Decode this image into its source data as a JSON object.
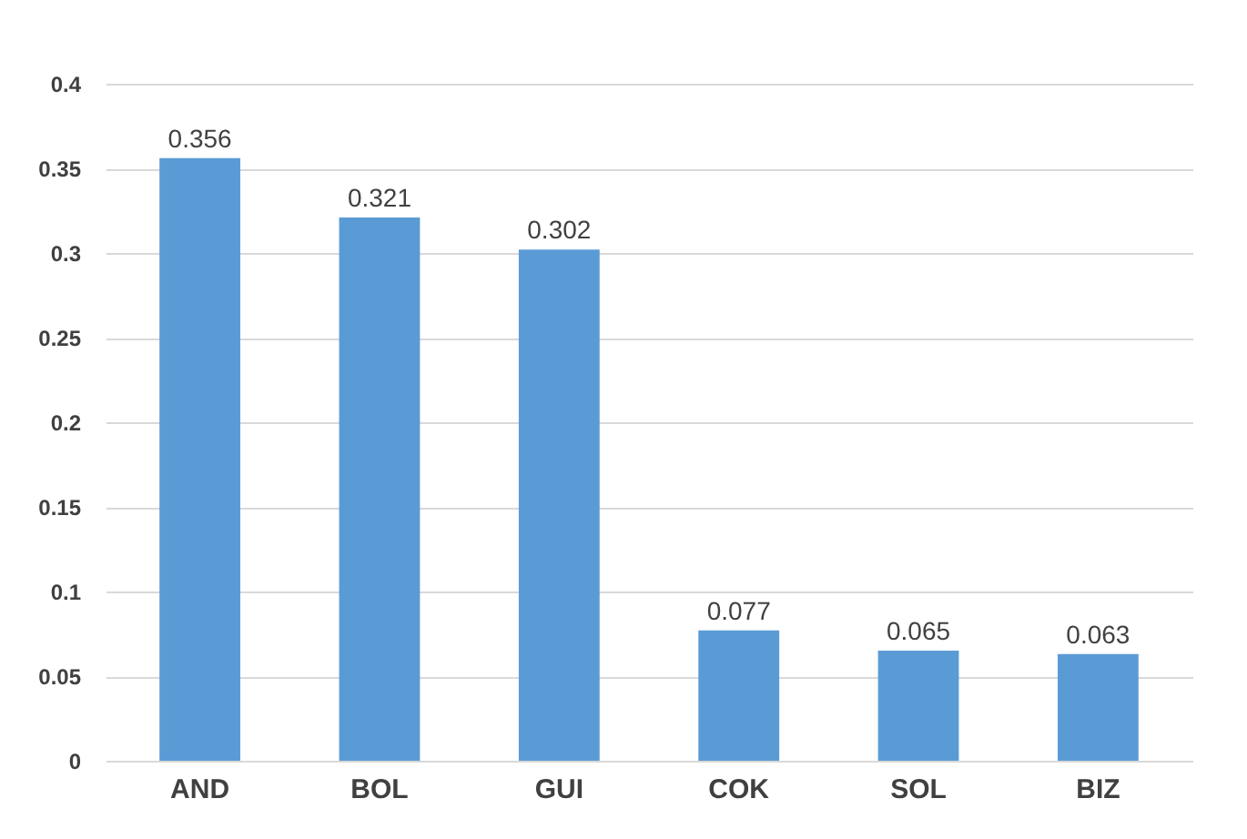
{
  "chart_data": {
    "type": "bar",
    "categories": [
      "AND",
      "BOL",
      "GUI",
      "COK",
      "SOL",
      "BIZ"
    ],
    "values": [
      0.356,
      0.321,
      0.302,
      0.077,
      0.065,
      0.063
    ],
    "color": "#5b9bd5",
    "ylim": [
      0,
      0.4
    ],
    "yticks": [
      0,
      0.05,
      0.1,
      0.15,
      0.2,
      0.25,
      0.3,
      0.35,
      0.4
    ],
    "grid": "y",
    "data_labels": true
  }
}
